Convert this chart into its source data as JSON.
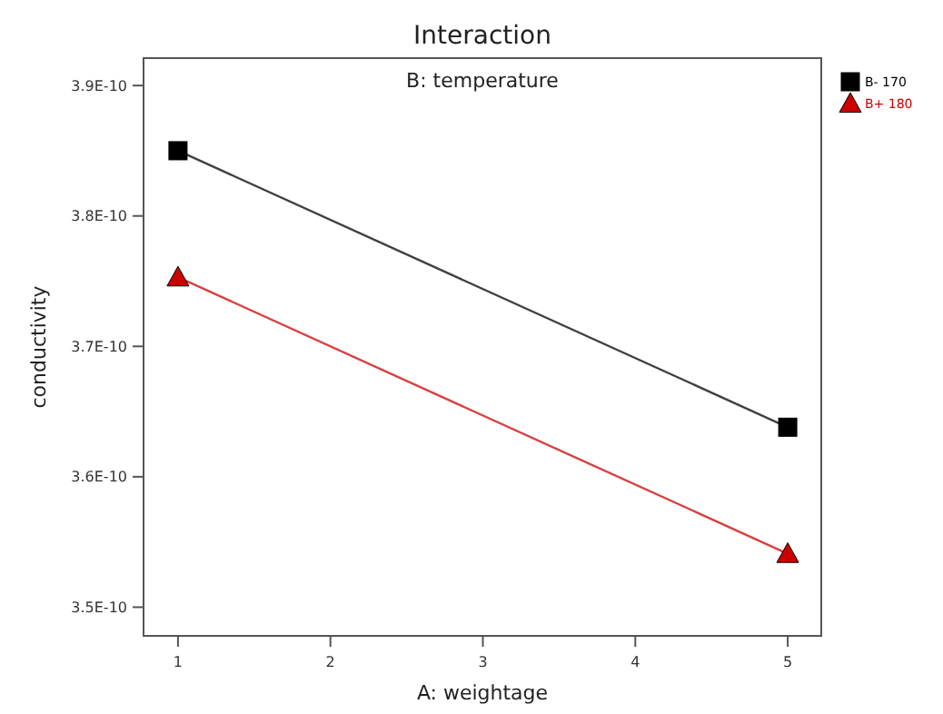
{
  "chart_data": {
    "type": "line",
    "title": "Interaction",
    "xlabel": "A: weightage",
    "ylabel": "conductivity",
    "annotations": [
      "B: temperature"
    ],
    "x": [
      1,
      5
    ],
    "series": [
      {
        "name": "B- 170",
        "color": "#000000",
        "marker": "square",
        "values": [
          3.85e-10,
          3.638e-10
        ]
      },
      {
        "name": "B+ 180",
        "color": "#cc0000",
        "marker": "triangle",
        "values": [
          3.753e-10,
          3.541e-10
        ]
      }
    ],
    "xlim": [
      0.774,
      5.22
    ],
    "xticks": [
      1,
      2,
      3,
      4,
      5
    ],
    "ylim": [
      3.478e-10,
      3.921e-10
    ],
    "yticks": [
      {
        "value": 3.5e-10,
        "label": "3.5E-10"
      },
      {
        "value": 3.6e-10,
        "label": "3.6E-10"
      },
      {
        "value": 3.7e-10,
        "label": "3.7E-10"
      },
      {
        "value": 3.8e-10,
        "label": "3.8E-10"
      },
      {
        "value": 3.9e-10,
        "label": "3.9E-10"
      }
    ],
    "grid": false,
    "legend": "top right",
    "line_style": "solid"
  }
}
